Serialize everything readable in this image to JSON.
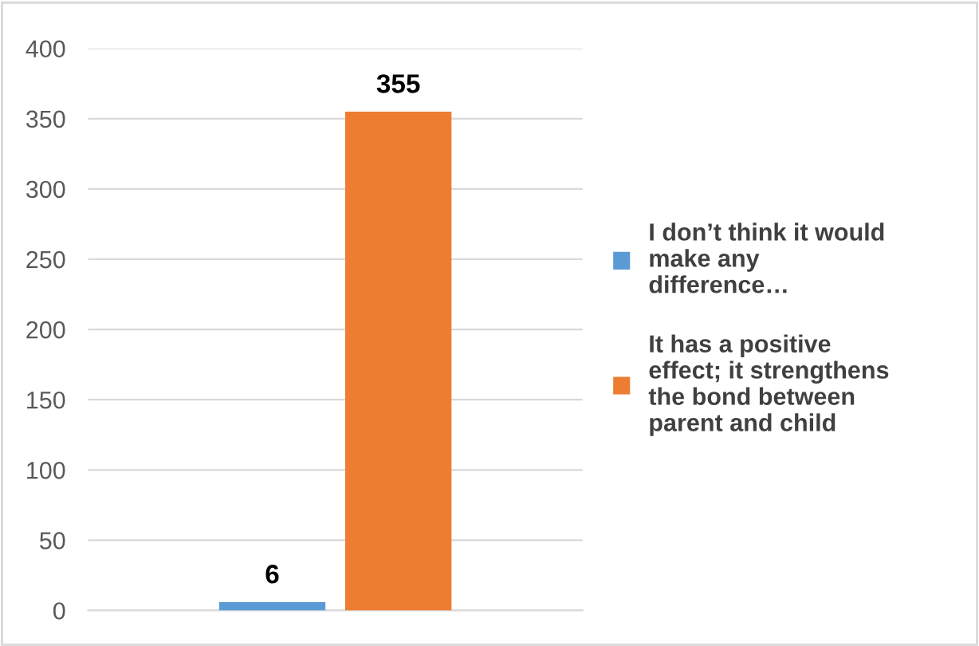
{
  "chart_data": {
    "type": "bar",
    "categories": [
      null
    ],
    "series": [
      {
        "name": "I don’t think it would\nmake any\ndifference…",
        "color": "#5b9bd5",
        "values": [
          6
        ]
      },
      {
        "name": "It has a positive\neffect; it strengthens\nthe bond between\nparent and child",
        "color": "#ed7d31",
        "values": [
          355
        ]
      }
    ],
    "ylim": [
      0,
      400
    ],
    "yticks": [
      0,
      50,
      100,
      150,
      200,
      250,
      300,
      350,
      400
    ],
    "grid": "y",
    "legend": "right",
    "data_labels": true
  }
}
